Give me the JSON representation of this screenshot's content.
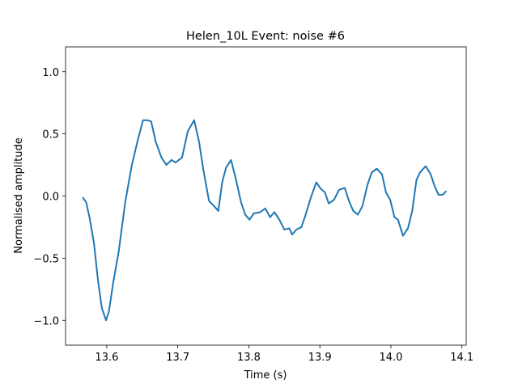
{
  "chart_data": {
    "type": "line",
    "title": "Helen_10L Event: noise #6",
    "xlabel": "Time (s)",
    "ylabel": "Normalised amplitude",
    "xlim": [
      13.542,
      14.106
    ],
    "ylim": [
      -1.2,
      1.2
    ],
    "xticks": [
      13.6,
      13.7,
      13.8,
      13.9,
      {
        "value": 14.0,
        "label": "14.0"
      },
      14.1
    ],
    "yticks": [
      {
        "value": -1.0,
        "label": "−1.0"
      },
      {
        "value": -0.5,
        "label": "−0.5"
      },
      {
        "value": 0.0,
        "label": "0.0"
      },
      {
        "value": 0.5,
        "label": "0.5"
      },
      {
        "value": 1.0,
        "label": "1.0"
      }
    ],
    "grid": false,
    "x": [
      13.566,
      13.571,
      13.576,
      13.582,
      13.5875,
      13.593,
      13.599,
      13.603,
      13.609,
      13.617,
      13.626,
      13.635,
      13.643,
      13.651,
      13.657,
      13.6625,
      13.669,
      13.677,
      13.684,
      13.691,
      13.697,
      13.706,
      13.714,
      13.723,
      13.73,
      13.736,
      13.744,
      13.751,
      13.757,
      13.7625,
      13.768,
      13.775,
      13.782,
      13.789,
      13.795,
      13.801,
      13.807,
      13.816,
      13.823,
      13.83,
      13.836,
      13.843,
      13.85,
      13.857,
      13.861,
      13.867,
      13.874,
      13.88,
      13.888,
      13.895,
      13.901,
      13.907,
      13.9125,
      13.92,
      13.927,
      13.935,
      13.941,
      13.947,
      13.9535,
      13.96,
      13.967,
      13.973,
      13.98,
      13.9875,
      13.993,
      13.999,
      14.005,
      14.01,
      14.017,
      14.024,
      14.03,
      14.036,
      14.041,
      14.049,
      14.056,
      14.0615,
      14.067,
      14.073,
      14.078
    ],
    "series": [
      {
        "color": "#1f77b4",
        "values": [
          -0.01,
          -0.05,
          -0.18,
          -0.38,
          -0.67,
          -0.9,
          -1.0,
          -0.93,
          -0.7,
          -0.44,
          -0.05,
          0.24,
          0.435,
          0.61,
          0.61,
          0.6,
          0.435,
          0.31,
          0.25,
          0.29,
          0.27,
          0.31,
          0.52,
          0.61,
          0.435,
          0.21,
          -0.04,
          -0.08,
          -0.12,
          0.11,
          0.23,
          0.29,
          0.13,
          -0.05,
          -0.15,
          -0.19,
          -0.14,
          -0.13,
          -0.1,
          -0.17,
          -0.13,
          -0.19,
          -0.27,
          -0.26,
          -0.31,
          -0.27,
          -0.25,
          -0.15,
          0.0,
          0.11,
          0.06,
          0.03,
          -0.06,
          -0.03,
          0.05,
          0.065,
          -0.04,
          -0.12,
          -0.15,
          -0.08,
          0.09,
          0.19,
          0.22,
          0.175,
          0.03,
          -0.03,
          -0.17,
          -0.19,
          -0.32,
          -0.26,
          -0.12,
          0.13,
          0.19,
          0.24,
          0.175,
          0.08,
          0.01,
          0.01,
          0.04
        ]
      }
    ]
  }
}
